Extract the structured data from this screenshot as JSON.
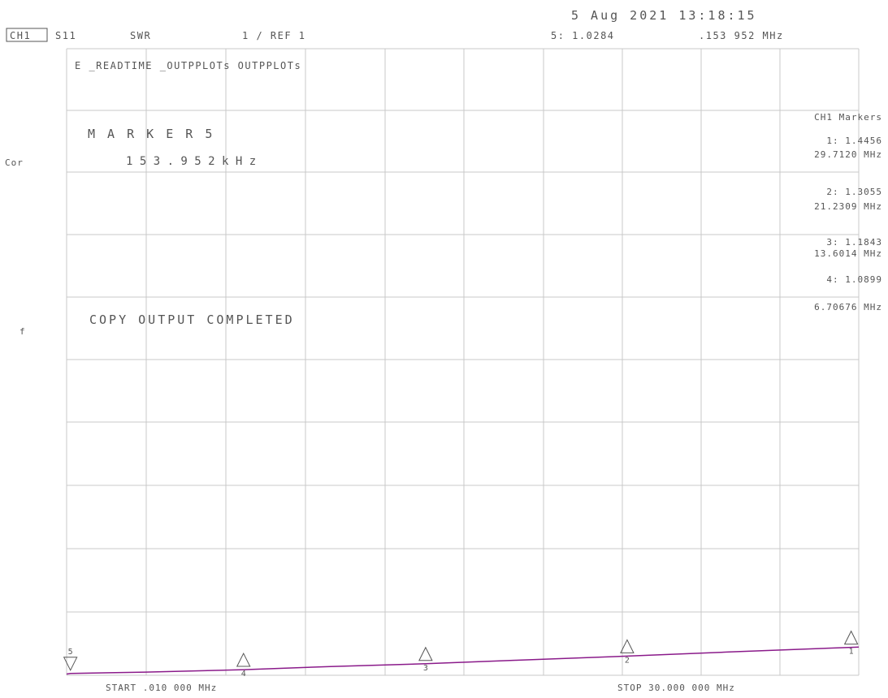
{
  "header": {
    "datetime": "5 Aug 2021  13:18:15",
    "channel_label": "CH1",
    "measurement": "S11",
    "format": "SWR",
    "scale": "1 / REF 1",
    "active_marker_value": "5: 1.0284",
    "active_marker_freq": ".153 952 MHz"
  },
  "side": {
    "correction": "Cor",
    "flag": "f"
  },
  "title_line": "E  _READTIME  _OUTPPLOTs OUTPPLOTs",
  "marker_readout": {
    "label": "M A R K E R   5",
    "freq": "1 5 3 . 9 5 2   k H z"
  },
  "message": "COPY OUTPUT COMPLETED",
  "marker_table": {
    "title": "CH1 Markers",
    "entries": [
      {
        "value": "1: 1.4456",
        "freq": "29.7120 MHz"
      },
      {
        "value": "2: 1.3055",
        "freq": "21.2309 MHz"
      },
      {
        "value": "3: 1.1843",
        "freq": "13.6014 MHz"
      },
      {
        "value": "4: 1.0899",
        "freq": "6.70676 MHz"
      }
    ]
  },
  "footer": {
    "start": "START .010 000 MHz",
    "stop": "STOP 30.000 000 MHz"
  },
  "colors": {
    "trace": "#8a1a8a",
    "grid": "#c8c8c8",
    "text": "#555555"
  },
  "chart_data": {
    "type": "line",
    "x_unit": "MHz",
    "y_unit": "SWR",
    "xlim": [
      0.01,
      30.0
    ],
    "ylim": [
      1,
      11
    ],
    "x_divisions": 10,
    "y_divisions": 10,
    "grid": true,
    "series": [
      {
        "x": [
          0.01,
          0.153952,
          3.0,
          6.70676,
          10.0,
          13.6014,
          17.0,
          21.2309,
          25.0,
          29.712,
          30.0
        ],
        "y": [
          1.02,
          1.0284,
          1.05,
          1.0899,
          1.14,
          1.1843,
          1.24,
          1.3055,
          1.37,
          1.4456,
          1.45
        ]
      }
    ],
    "markers": [
      {
        "label": "1",
        "x": 29.712,
        "y": 1.4456
      },
      {
        "label": "2",
        "x": 21.2309,
        "y": 1.3055
      },
      {
        "label": "3",
        "x": 13.6014,
        "y": 1.1843
      },
      {
        "label": "4",
        "x": 6.70676,
        "y": 1.0899
      },
      {
        "label": "5",
        "x": 0.153952,
        "y": 1.0284
      }
    ]
  }
}
